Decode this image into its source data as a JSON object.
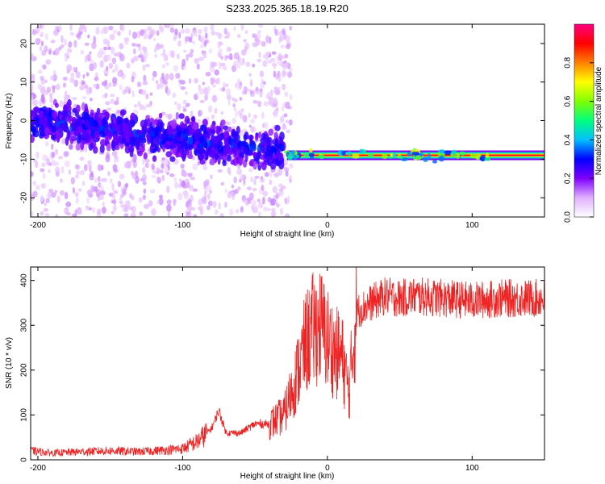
{
  "title": "S233.2025.365.18.19.R20",
  "chart_data": [
    {
      "type": "heatmap",
      "xlabel": "Height of straight line (km)",
      "ylabel": "Frequency (Hz)",
      "xlim": [
        -205,
        150
      ],
      "ylim": [
        -25,
        25
      ],
      "xticks": [
        -200,
        -100,
        0,
        100
      ],
      "yticks": [
        -20,
        -10,
        0,
        10,
        20
      ],
      "colorbar": {
        "label": "Normalized spectral amplitude",
        "range": [
          0,
          1
        ],
        "ticks": [
          0.0,
          0.2,
          0.4,
          0.6,
          0.8
        ],
        "colors": [
          "#ffffff",
          "#e0b0ff",
          "#8000ff",
          "#0000ff",
          "#00c0ff",
          "#00ff80",
          "#80ff00",
          "#ffff00",
          "#ff8000",
          "#ff0000",
          "#ff0080"
        ]
      },
      "features": {
        "noisy_band": {
          "x_range": [
            -205,
            -30
          ],
          "centre_freq_start": 0,
          "centre_freq_end": -8
        },
        "stable_line": {
          "x_range": [
            -28,
            150
          ],
          "freq": -9
        }
      }
    },
    {
      "type": "line",
      "xlabel": "Height of straight line (km)",
      "ylabel": "SNR (10 * v/v)",
      "xlim": [
        -205,
        150
      ],
      "ylim": [
        0,
        430
      ],
      "xticks": [
        -200,
        -100,
        0,
        100
      ],
      "yticks": [
        0,
        100,
        200,
        300,
        400
      ],
      "line_color": "#ee2222",
      "series": [
        {
          "x": [
            -205,
            -190,
            -170,
            -150,
            -130,
            -110,
            -100,
            -90,
            -80,
            -75,
            -70,
            -60,
            -50,
            -40,
            -30,
            -25,
            -20,
            -15,
            -10,
            -5,
            0,
            5,
            10,
            15,
            20,
            30,
            40,
            50,
            60,
            80,
            100,
            120,
            140,
            150
          ],
          "values": [
            20,
            15,
            18,
            20,
            18,
            22,
            25,
            40,
            70,
            110,
            60,
            60,
            80,
            80,
            100,
            150,
            200,
            260,
            290,
            300,
            270,
            240,
            230,
            150,
            330,
            350,
            365,
            360,
            365,
            360,
            355,
            360,
            360,
            360
          ]
        }
      ]
    }
  ]
}
